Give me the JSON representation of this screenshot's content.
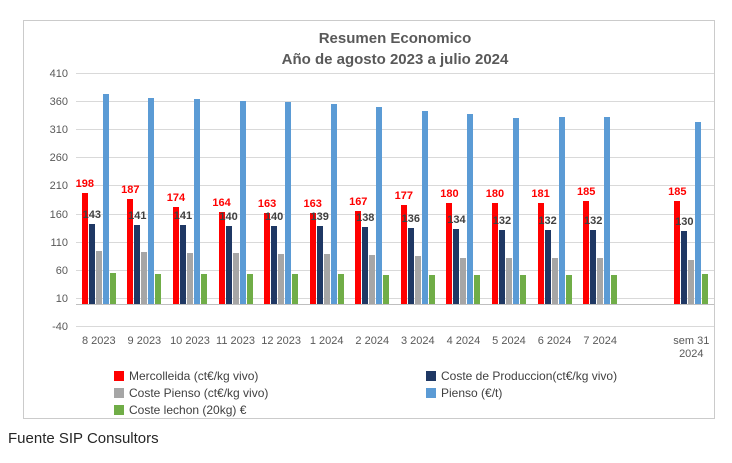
{
  "footer": "Fuente SIP Consultors",
  "chart_data": {
    "type": "bar",
    "title": "Resumen Economico",
    "subtitle": "Año de agosto 2023 a julio 2024",
    "categories": [
      "8 2023",
      "9 2023",
      "10 2023",
      "11 2023",
      "12 2023",
      "1 2024",
      "2 2024",
      "3 2024",
      "4 2024",
      "5 2024",
      "6 2024",
      "7 2024",
      "sem 31 2024"
    ],
    "gap_before_index": 12,
    "y_axis": {
      "min": -40,
      "max": 410,
      "step": 50
    },
    "grid": true,
    "legend_position": "bottom",
    "series": [
      {
        "name": "Mercolleida (ct€/kg vivo)",
        "color": "#FF0000",
        "show_labels": true,
        "label_color": "#FF0000",
        "values": [
          198,
          187,
          174,
          164,
          163,
          163,
          167,
          177,
          180,
          180,
          181,
          185,
          185
        ]
      },
      {
        "name": "Coste de Produccion(ct€/kg vivo)",
        "color": "#1F3864",
        "show_labels": true,
        "label_color": "#404040",
        "values": [
          143,
          141,
          141,
          140,
          140,
          139,
          138,
          136,
          134,
          132,
          132,
          132,
          130
        ]
      },
      {
        "name": "Coste Pienso (ct€/kg vivo)",
        "color": "#A6A6A6",
        "show_labels": false,
        "values": [
          95,
          93,
          92,
          91,
          90,
          90,
          89,
          86,
          83,
          82,
          82,
          82,
          80
        ]
      },
      {
        "name": "Pienso (€/t)",
        "color": "#5B9BD5",
        "show_labels": false,
        "values": [
          375,
          368,
          365,
          362,
          361,
          356,
          352,
          345,
          339,
          331,
          333,
          334,
          325
        ]
      },
      {
        "name": "Coste lechon (20kg) €",
        "color": "#70AD47",
        "show_labels": false,
        "values": [
          56,
          55,
          55,
          54,
          54,
          54,
          53,
          53,
          52,
          52,
          52,
          53,
          54
        ]
      }
    ],
    "legend_columns": [
      [
        0,
        2,
        4
      ],
      [
        1,
        3
      ]
    ],
    "colors": {
      "gridline": "#D9D9D9",
      "axis_line": "#BFBFBF",
      "axis_text": "#595959",
      "title_text": "#595959",
      "frame_border": "#CBCBCB"
    }
  }
}
